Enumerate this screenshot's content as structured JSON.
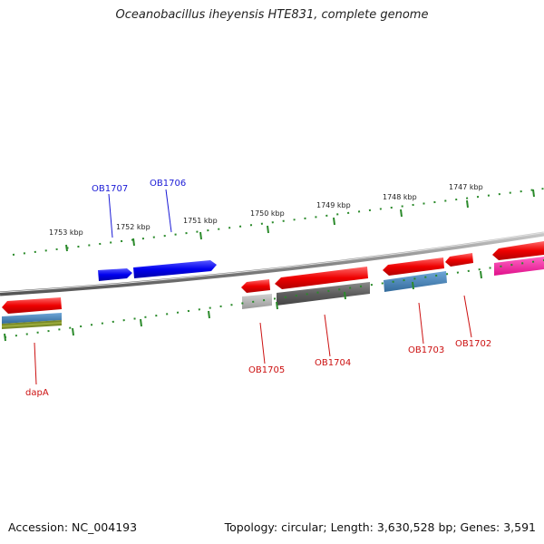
{
  "title": "Oceanobacillus iheyensis HTE831, complete genome",
  "footer": {
    "accession": "Accession: NC_004193",
    "summary": "Topology: circular; Length: 3,630,528 bp; Genes: 3,591"
  },
  "colors": {
    "forward_gene": "#0000ee",
    "reverse_gene": "#ee0000",
    "gray_feature": "#666666",
    "light_gray_feature": "#b5b5b5",
    "steelblue_feature": "#4a82b8",
    "olive_feature": "#7a8a28",
    "magenta_feature": "#ff33aa",
    "tick_color": "#2a8a2a",
    "backbone": "#888888"
  },
  "scale_labels": [
    "1753 kbp",
    "1752 kbp",
    "1751 kbp",
    "1750 kbp",
    "1749 kbp",
    "1748 kbp",
    "1747 kbp"
  ],
  "gene_labels": {
    "forward": [
      "OB1707",
      "OB1706"
    ],
    "reverse": [
      "dapA",
      "OB1705",
      "OB1704",
      "OB1703",
      "OB1702"
    ]
  }
}
